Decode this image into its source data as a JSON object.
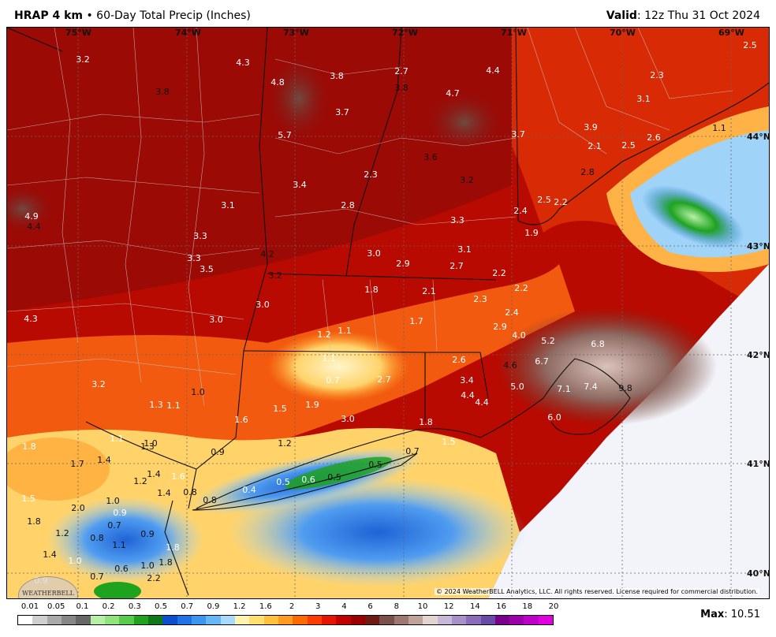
{
  "header": {
    "model": "HRAP 4 km",
    "separator": "•",
    "product": "60-Day Total Precip (Inches)",
    "valid_label": "Valid",
    "valid_time": ": 12z Thu 31 Oct 2024"
  },
  "map": {
    "region": "Northeast US (New England / New York)",
    "lon_labels": [
      "75°W",
      "74°W",
      "73°W",
      "72°W",
      "71°W",
      "70°W",
      "69°W"
    ],
    "lat_labels": [
      "44°N",
      "43°N",
      "42°N",
      "41°N",
      "40°N"
    ],
    "value_labels": [
      "3.2",
      "4.3",
      "4.8",
      "3.8",
      "2.7",
      "3.8",
      "4.4",
      "4.7",
      "2.5",
      "2.3",
      "3.8",
      "3.1",
      "5.7",
      "3.7",
      "3.7",
      "3.9",
      "2.1",
      "2.5",
      "2.6",
      "1.1",
      "3.6",
      "3.2",
      "2.8",
      "3.4",
      "2.3",
      "2.5",
      "2.2",
      "4.9",
      "4.4",
      "3.1",
      "2.8",
      "3.3",
      "2.4",
      "1.9",
      "3.3",
      "3.1",
      "3.3",
      "3.0",
      "2.9",
      "2.7",
      "4.2",
      "3.2",
      "3.5",
      "2.2",
      "1.8",
      "2.1",
      "2.2",
      "2.3",
      "3.0",
      "2.4",
      "4.3",
      "3.0",
      "1.7",
      "2.9",
      "4.0",
      "1.2",
      "1.1",
      "5.2",
      "6.8",
      "1.1",
      "2.6",
      "4.6",
      "6.7",
      "3.2",
      "0.7",
      "2.7",
      "3.4",
      "5.0",
      "7.1",
      "7.4",
      "9.8",
      "1.0",
      "4.4",
      "4.4",
      "1.3",
      "1.1",
      "1.5",
      "1.9",
      "1.6",
      "3.0",
      "6.0",
      "1.1",
      "1.0",
      "1.8",
      "1.8",
      "1.3",
      "1.2",
      "0.9",
      "0.7",
      "1.5",
      "1.7",
      "1.4",
      "1.2",
      "1.4",
      "1.6",
      "0.4",
      "0.5",
      "0.6",
      "0.5",
      "0.5",
      "1.5",
      "1.0",
      "1.4",
      "0.8",
      "0.8",
      "2.0",
      "0.9",
      "1.8",
      "0.7",
      "1.2",
      "0.8",
      "1.1",
      "0.9",
      "1.4",
      "1.8",
      "1.8",
      "1.0",
      "0.6",
      "1.0",
      "0.7",
      "2.2",
      "0.9"
    ],
    "copyright": "© 2024 WeatherBELL Analytics, LLC. All rights reserved. License required for commercial distribution.",
    "logo_text": "WEATHERBELL"
  },
  "legend": {
    "ticks": [
      "0.01",
      "0.05",
      "0.1",
      "0.2",
      "0.3",
      "0.5",
      "0.7",
      "0.9",
      "1.2",
      "1.6",
      "2",
      "3",
      "4",
      "6",
      "8",
      "10",
      "12",
      "14",
      "16",
      "18",
      "20"
    ],
    "colors": [
      "#ffffff",
      "#cfcfcf",
      "#a9a9a9",
      "#868686",
      "#666666",
      "#b6f0a6",
      "#8fe47c",
      "#55cc4a",
      "#1fa31f",
      "#0e7a17",
      "#0b4fcf",
      "#1f73e6",
      "#3b96ef",
      "#66b7f7",
      "#a8dafc",
      "#fff3b0",
      "#ffdf6e",
      "#ffc03c",
      "#ff9b1f",
      "#ff6a00",
      "#ff3c00",
      "#e81400",
      "#c30000",
      "#9b0000",
      "#6e1b12",
      "#7a5048",
      "#9c7870",
      "#bfa39b",
      "#e4d4cf",
      "#c8b8d8",
      "#a890c8",
      "#8a6cb8",
      "#6a4aa8",
      "#7a008c",
      "#9b00aa",
      "#c000c8",
      "#e000e0"
    ]
  },
  "max": {
    "label": "Max",
    "value": ": 10.51"
  }
}
